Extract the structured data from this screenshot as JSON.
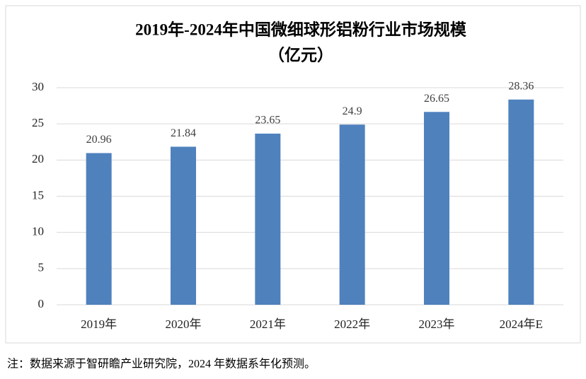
{
  "chart_data": {
    "type": "bar",
    "title": "2019年-2024年中国微细球形铝粉行业市场规模",
    "subtitle": "（亿元）",
    "categories": [
      "2019年",
      "2020年",
      "2021年",
      "2022年",
      "2023年",
      "2024年E"
    ],
    "values": [
      20.96,
      21.84,
      23.65,
      24.9,
      26.65,
      28.36
    ],
    "color": "#4f81bd",
    "ylim": [
      0,
      30
    ],
    "yticks": [
      0,
      5,
      10,
      15,
      20,
      25,
      30
    ],
    "grid": true
  },
  "footnote": "注：数据来源于智研瞻产业研究院，2024 年数据系年化预测。"
}
